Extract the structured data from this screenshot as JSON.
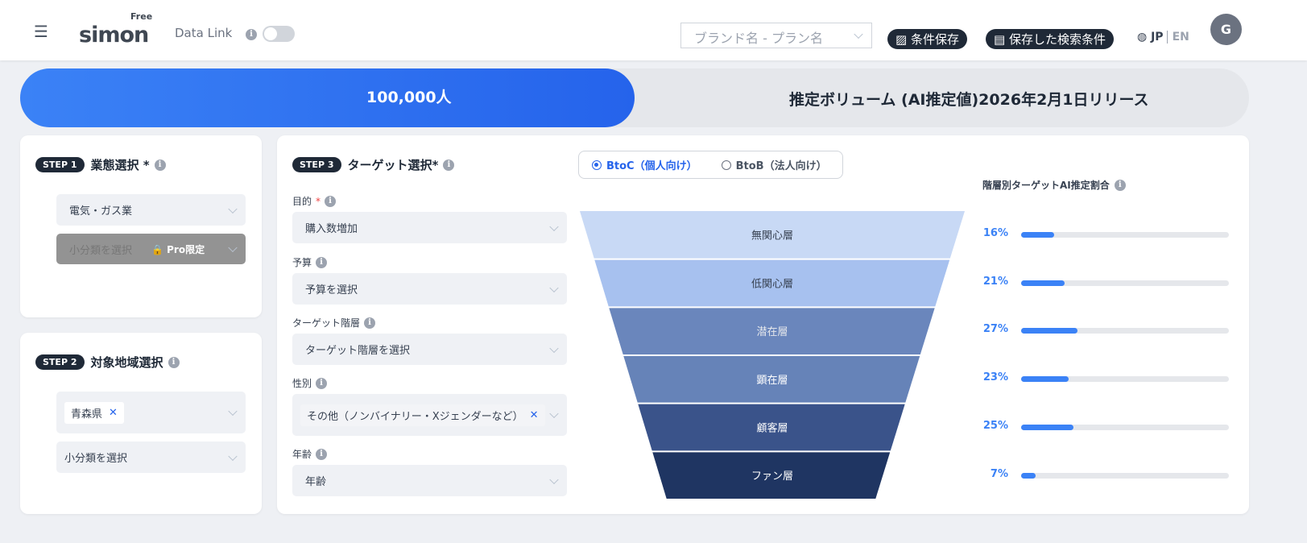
{
  "header": {
    "menu_icon": "hamburger-icon",
    "logo": "simon",
    "logo_badge": "Free",
    "data_link_label": "Data Link",
    "brand_select_placeholder": "ブランド名 - プラン名",
    "save_conditions": "条件保存",
    "saved_searches": "保存した検索条件",
    "lang_jp": "JP",
    "lang_en": "EN",
    "avatar_initial": "G"
  },
  "volume": {
    "value": "100,000人",
    "label": "推定ボリューム (AI推定値)2026年2月1日リリース",
    "fill_fraction": 0.5
  },
  "step1": {
    "badge": "STEP 1",
    "title": "業態選択 *",
    "industry": "電気・ガス業",
    "subcategory_placeholder": "小分類を選択",
    "lock_label": "Pro限定"
  },
  "step2": {
    "badge": "STEP 2",
    "title": "対象地域選択",
    "region_chip": "青森県",
    "subcategory_placeholder": "小分類を選択"
  },
  "step3": {
    "badge": "STEP 3",
    "title": "ターゲット選択*",
    "fields": [
      {
        "label": "目的",
        "required": "*",
        "value": "購入数増加"
      },
      {
        "label": "予算",
        "value": "予算を選択"
      },
      {
        "label": "ターゲット階層",
        "value": "ターゲット階層を選択"
      },
      {
        "label": "性別",
        "chip": "その他（ノンバイナリー・Xジェンダーなど）"
      },
      {
        "label": "年齢",
        "value": "年齢"
      }
    ]
  },
  "audience": {
    "options": [
      "BtoC（個人向け）",
      "BtoB（法人向け）"
    ],
    "selected": "BtoC（個人向け）"
  },
  "funnel": {
    "layers": [
      {
        "name": "無関心層",
        "color": "#c8d9f5",
        "text": "#374151",
        "pct": 16,
        "pct_label": "16%"
      },
      {
        "name": "低関心層",
        "color": "#a7c1ef",
        "text": "#374151",
        "pct": 21,
        "pct_label": "21%"
      },
      {
        "name": "潜在層",
        "color": "#6a86bc",
        "text": "#e5e7eb",
        "pct": 27,
        "pct_label": "27%"
      },
      {
        "name": "顕在層",
        "color": "#6683b8",
        "text": "#ffffff",
        "pct": 23,
        "pct_label": "23%"
      },
      {
        "name": "顧客層",
        "color": "#3a538a",
        "text": "#ffffff",
        "pct": 25,
        "pct_label": "25%"
      },
      {
        "name": "ファン層",
        "color": "#1f3562",
        "text": "#ffffff",
        "pct": 7,
        "pct_label": "7%"
      }
    ],
    "ratio_title": "階層別ターゲットAI推定割合",
    "bar_color": "#3b82f6"
  }
}
